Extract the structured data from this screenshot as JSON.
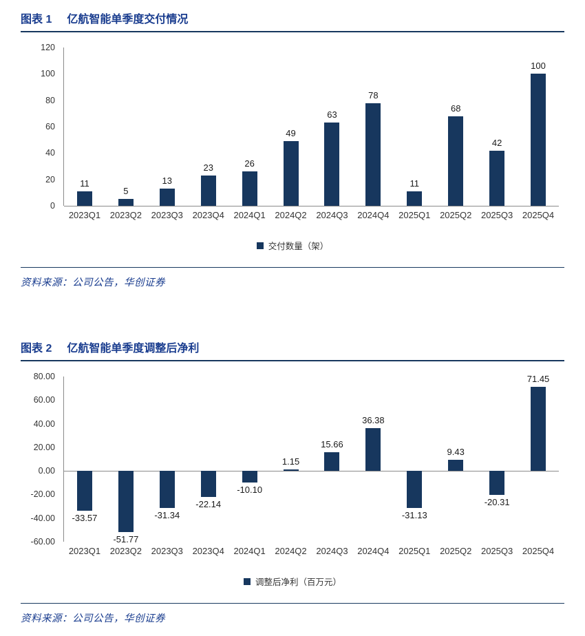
{
  "colors": {
    "bar_navy": "#17375E",
    "title_blue": "#1A3D8F",
    "rule_navy": "#17375E",
    "source_blue": "#1A3D8F",
    "axis_gray": "#8a8a8a"
  },
  "figures": [
    {
      "label": "图表 1",
      "title": "亿航智能单季度交付情况",
      "legend": "交付数量（架）",
      "source": "资料来源：公司公告，华创证券"
    },
    {
      "label": "图表 2",
      "title": "亿航智能单季度调整后净利",
      "legend": "调整后净利（百万元）",
      "source": "资料来源：公司公告，华创证券"
    }
  ],
  "chart_data": [
    {
      "type": "bar",
      "title": "图表 1 亿航智能单季度交付情况",
      "categories": [
        "2023Q1",
        "2023Q2",
        "2023Q3",
        "2023Q4",
        "2024Q1",
        "2024Q2",
        "2024Q3",
        "2024Q4",
        "2025Q1",
        "2025Q2",
        "2025Q3",
        "2025Q4"
      ],
      "values": [
        11,
        5,
        13,
        23,
        26,
        49,
        63,
        78,
        11,
        68,
        42,
        100
      ],
      "value_labels": [
        "11",
        "5",
        "13",
        "23",
        "26",
        "49",
        "63",
        "78",
        "11",
        "68",
        "42",
        "100"
      ],
      "xlabel": "",
      "ylabel": "",
      "ylim": [
        0,
        120
      ],
      "yticks": [
        120,
        100,
        80,
        60,
        40,
        20,
        0
      ],
      "ytick_labels": [
        "120",
        "100",
        "80",
        "60",
        "40",
        "20",
        "0"
      ],
      "grid": false,
      "legend": [
        "交付数量（架）"
      ],
      "legend_position": "bottom",
      "bar_color": "#17375E"
    },
    {
      "type": "bar",
      "title": "图表 2 亿航智能单季度调整后净利",
      "categories": [
        "2023Q1",
        "2023Q2",
        "2023Q3",
        "2023Q4",
        "2024Q1",
        "2024Q2",
        "2024Q3",
        "2024Q4",
        "2025Q1",
        "2025Q2",
        "2025Q3",
        "2025Q4"
      ],
      "values": [
        -33.57,
        -51.77,
        -31.34,
        -22.14,
        -10.1,
        1.15,
        15.66,
        36.38,
        -31.13,
        9.43,
        -20.31,
        71.45
      ],
      "value_labels": [
        "-33.57",
        "-51.77",
        "-31.34",
        "-22.14",
        "-10.10",
        "1.15",
        "15.66",
        "36.38",
        "-31.13",
        "9.43",
        "-20.31",
        "71.45"
      ],
      "xlabel": "",
      "ylabel": "",
      "ylim": [
        -60,
        80
      ],
      "yticks": [
        80,
        60,
        40,
        20,
        0,
        -20,
        -40,
        -60
      ],
      "ytick_labels": [
        "80.00",
        "60.00",
        "40.00",
        "20.00",
        "0.00",
        "-20.00",
        "-40.00",
        "-60.00"
      ],
      "grid": false,
      "legend": [
        "调整后净利（百万元）"
      ],
      "legend_position": "bottom",
      "bar_color": "#17375E"
    }
  ]
}
